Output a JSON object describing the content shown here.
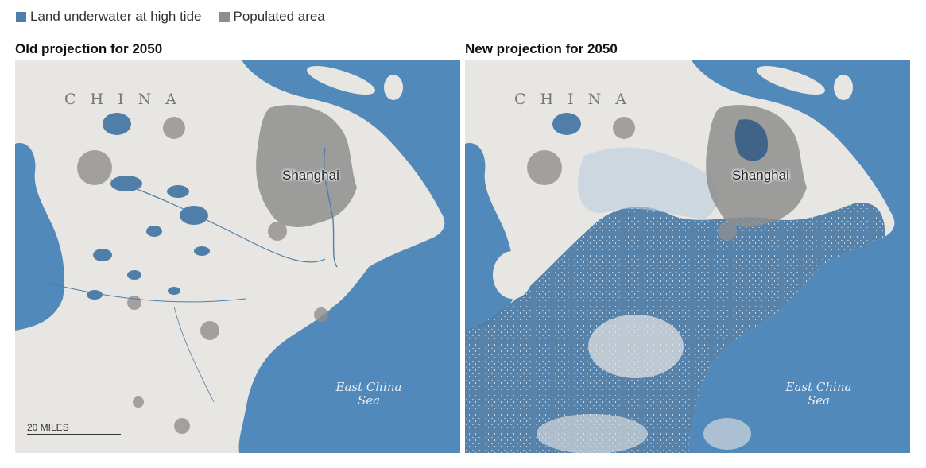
{
  "legend": {
    "items": [
      {
        "label": "Land underwater at high tide",
        "color": "#4f7ea8"
      },
      {
        "label": "Populated area",
        "color": "#8e8e8e"
      }
    ]
  },
  "panels": [
    {
      "title": "Old projection for 2050",
      "country_label": "CHINA",
      "city_label": "Shanghai",
      "sea_label_line1": "East China",
      "sea_label_line2": "Sea",
      "scale_label": "20 MILES"
    },
    {
      "title": "New projection for 2050",
      "country_label": "CHINA",
      "city_label": "Shanghai",
      "sea_label_line1": "East China",
      "sea_label_line2": "Sea"
    }
  ],
  "colors": {
    "sea": "#5289bb",
    "land": "#e8e6e2",
    "flooded": "#4f7ea8",
    "populated": "#8e8e8e"
  }
}
